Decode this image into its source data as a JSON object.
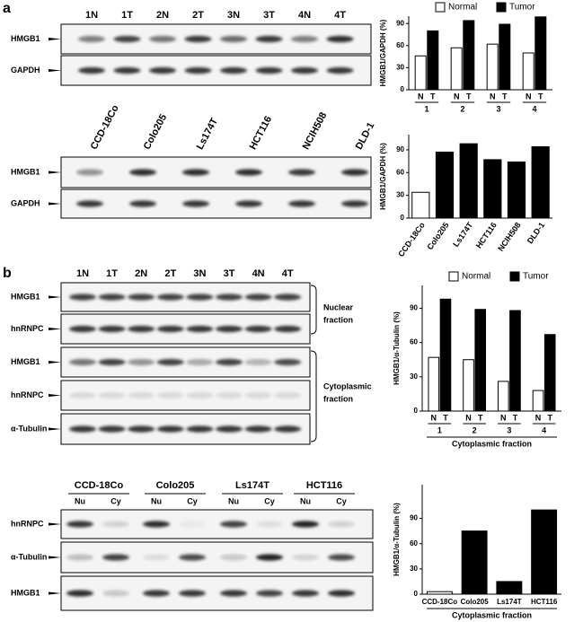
{
  "panel_labels": [
    "a",
    "b"
  ],
  "blots": [
    {
      "lanes": [
        "1N",
        "1T",
        "2N",
        "2T",
        "3N",
        "3T",
        "4N",
        "4T"
      ],
      "rows": [
        "HMGB1",
        "GAPDH"
      ]
    },
    {
      "lanes": [
        "CCD-18Co",
        "Colo205",
        "Ls174T",
        "HCT116",
        "NCIH508",
        "DLD-1"
      ],
      "rows": [
        "HMGB1",
        "GAPDH"
      ]
    },
    {
      "lanes": [
        "1N",
        "1T",
        "2N",
        "2T",
        "3N",
        "3T",
        "4N",
        "4T"
      ],
      "rows": [
        "HMGB1",
        "hnRNPC",
        "HMGB1",
        "hnRNPC",
        "α-Tubulin"
      ],
      "fractions": [
        [
          "Nuclear",
          "fraction"
        ],
        [
          "Cytoplasmic",
          "fraction"
        ]
      ]
    },
    {
      "groups": [
        "CCD-18Co",
        "Colo205",
        "Ls174T",
        "HCT116"
      ],
      "lanes": [
        "Nu",
        "Cy"
      ],
      "rows": [
        "hnRNPC",
        "α-Tubulin",
        "HMGB1"
      ]
    }
  ],
  "chart_data": [
    {
      "type": "bar",
      "y_label": "HMGB1/GAPDH (%)",
      "categories": [
        "1",
        "2",
        "3",
        "4"
      ],
      "bar_labels": [
        "N",
        "T"
      ],
      "series": [
        {
          "name": "Normal",
          "color": "#ffffff",
          "values": [
            46,
            57,
            62,
            50
          ]
        },
        {
          "name": "Tumor",
          "color": "#000000",
          "values": [
            80,
            94,
            89,
            99
          ]
        }
      ],
      "ylim": [
        0,
        100
      ],
      "yticks": [
        0,
        30,
        60,
        90
      ],
      "legend": "top"
    },
    {
      "type": "bar",
      "y_label": "HMGB1/GAPDH (%)",
      "categories": [
        "CCD-18Co",
        "Colo205",
        "Ls174T",
        "HCT116",
        "NCIH508",
        "DLD-1"
      ],
      "values": [
        34,
        87,
        98,
        77,
        74,
        94
      ],
      "colors": [
        "#ffffff",
        "#000000",
        "#000000",
        "#000000",
        "#000000",
        "#000000"
      ],
      "ylim": [
        0,
        110
      ],
      "yticks": [
        0,
        30,
        60,
        90
      ]
    },
    {
      "type": "bar",
      "y_label": "HMGB1/α-Tubulin (%)",
      "x_label": "Cytoplasmic fraction",
      "categories": [
        "1",
        "2",
        "3",
        "4"
      ],
      "bar_labels": [
        "N",
        "T"
      ],
      "series": [
        {
          "name": "Normal",
          "color": "#ffffff",
          "values": [
            47,
            45,
            26,
            18
          ]
        },
        {
          "name": "Tumor",
          "color": "#000000",
          "values": [
            98,
            89,
            88,
            67
          ]
        }
      ],
      "ylim": [
        0,
        110
      ],
      "yticks": [
        0,
        30,
        60,
        90
      ],
      "legend": "top"
    },
    {
      "type": "bar",
      "y_label": "HMGB1/α-Tubulin (%)",
      "x_label": "Cytoplasmic fraction",
      "categories": [
        "CCD-18Co",
        "Colo205",
        "Ls174T",
        "HCT116"
      ],
      "values": [
        3,
        75,
        15,
        100
      ],
      "colors": [
        "#ffffff",
        "#000000",
        "#000000",
        "#000000"
      ],
      "ylim": [
        0,
        130
      ],
      "yticks": [
        0,
        30,
        60,
        90
      ]
    }
  ]
}
